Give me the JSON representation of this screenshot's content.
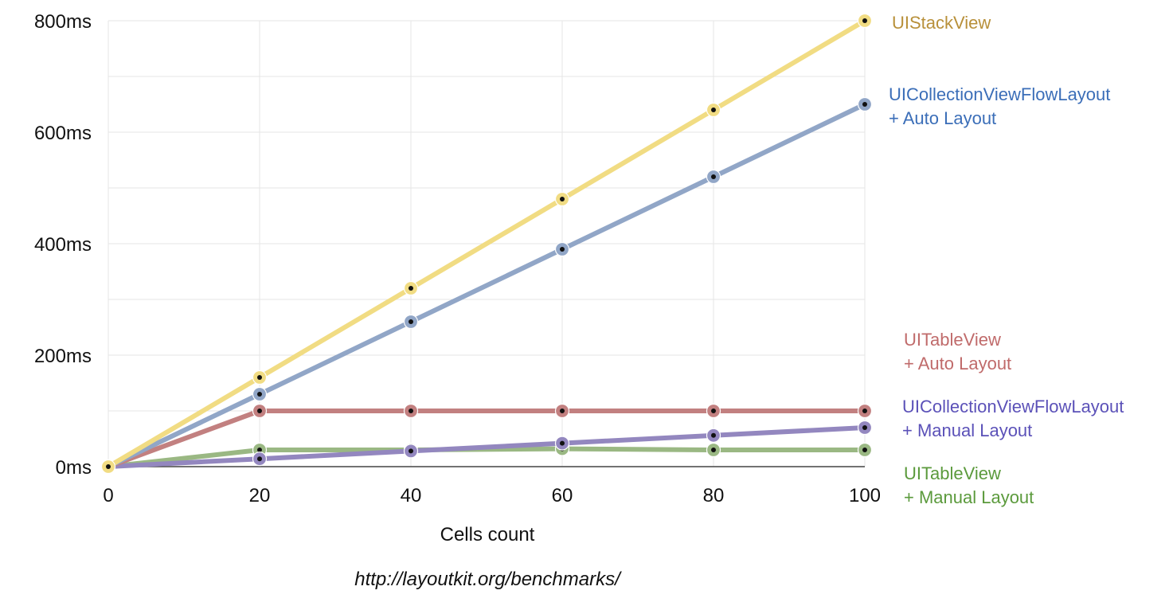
{
  "chart_data": {
    "type": "line",
    "title": "",
    "xlabel": "Cells count",
    "ylabel": "",
    "x": [
      0,
      20,
      40,
      60,
      80,
      100
    ],
    "xlim": [
      0,
      100
    ],
    "ylim": [
      0,
      800
    ],
    "x_tick_labels": [
      "0",
      "20",
      "40",
      "60",
      "80",
      "100"
    ],
    "y_tick_labels": [
      "0ms",
      "200ms",
      "400ms",
      "600ms",
      "800ms"
    ],
    "y_ticks": [
      0,
      200,
      400,
      600,
      800
    ],
    "grid": true,
    "legend_placement": "right",
    "series": [
      {
        "name_lines": [
          "UITableView",
          "+ Manual Layout"
        ],
        "color": "#9ab883",
        "label_color": "#5b9a3c",
        "values": [
          0,
          30,
          30,
          32,
          30,
          30
        ]
      },
      {
        "name_lines": [
          "UICollectionViewFlowLayout",
          "+ Manual Layout"
        ],
        "color": "#9387bf",
        "label_color": "#5b51b8",
        "values": [
          0,
          14,
          28,
          42,
          56,
          70
        ]
      },
      {
        "name_lines": [
          "UITableView",
          "+ Auto Layout"
        ],
        "color": "#c28080",
        "label_color": "#c06b6b",
        "values": [
          0,
          100,
          100,
          100,
          100,
          100
        ]
      },
      {
        "name_lines": [
          "UICollectionViewFlowLayout",
          "+ Auto Layout"
        ],
        "color": "#91a6c7",
        "label_color": "#3b6eb8",
        "values": [
          0,
          130,
          260,
          390,
          520,
          650
        ]
      },
      {
        "name_lines": [
          "UIStackView"
        ],
        "color": "#f1dc83",
        "label_color": "#b8903a",
        "values": [
          0,
          160,
          320,
          480,
          640,
          800
        ]
      }
    ],
    "source": "http://layoutkit.org/benchmarks/"
  }
}
